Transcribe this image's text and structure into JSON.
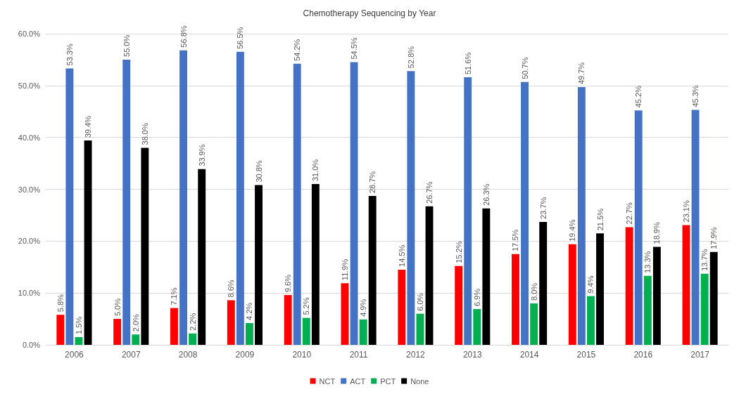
{
  "chart_data": {
    "type": "bar",
    "title": "Chemotherapy Sequencing by Year",
    "categories": [
      "2006",
      "2007",
      "2008",
      "2009",
      "2010",
      "2011",
      "2012",
      "2013",
      "2014",
      "2015",
      "2016",
      "2017"
    ],
    "series": [
      {
        "name": "NCT",
        "color": "#ff0000",
        "values": [
          5.8,
          5.0,
          7.1,
          8.6,
          9.6,
          11.9,
          14.5,
          15.2,
          17.5,
          19.4,
          22.7,
          23.1
        ],
        "value_labels": [
          "5.8%",
          "5.0%",
          "7.1%",
          "8.6%",
          "9.6%",
          "11.9%",
          "14.5%",
          "15.2%",
          "17.5%",
          "19.4%",
          "22.7%",
          "23.1%"
        ]
      },
      {
        "name": "ACT",
        "color": "#4472c4",
        "values": [
          53.3,
          55.0,
          56.8,
          56.5,
          54.2,
          54.5,
          52.8,
          51.6,
          50.7,
          49.7,
          45.2,
          45.3
        ],
        "value_labels": [
          "53.3%",
          "55.0%",
          "56.8%",
          "56.5%",
          "54.2%",
          "54.5%",
          "52.8%",
          "51.6%",
          "50.7%",
          "49.7%",
          "45.2%",
          "45.3%"
        ]
      },
      {
        "name": "PCT",
        "color": "#00b050",
        "values": [
          1.5,
          2.0,
          2.2,
          4.2,
          5.2,
          4.9,
          6.0,
          6.9,
          8.0,
          9.4,
          13.3,
          13.7
        ],
        "value_labels": [
          "1.5%",
          "2.0%",
          "2.2%",
          "4.2%",
          "5.2%",
          "4.9%",
          "6.0%",
          "6.9%",
          "8.0%",
          "9.4%",
          "13.3%",
          "13.7%"
        ]
      },
      {
        "name": "None",
        "color": "#000000",
        "values": [
          39.4,
          38.0,
          33.9,
          30.8,
          31.0,
          28.7,
          26.7,
          26.3,
          23.7,
          21.5,
          18.9,
          17.9
        ],
        "value_labels": [
          "39.4%",
          "38.0%",
          "33.9%",
          "30.8%",
          "31.0%",
          "28.7%",
          "26.7%",
          "26.3%",
          "23.7%",
          "21.5%",
          "18.9%",
          "17.9%"
        ]
      }
    ],
    "ylim": [
      0,
      60
    ],
    "yticks": [
      {
        "value": 0,
        "label": "0.0%"
      },
      {
        "value": 10,
        "label": "10.0%"
      },
      {
        "value": 20,
        "label": "20.0%"
      },
      {
        "value": 30,
        "label": "30.0%"
      },
      {
        "value": 40,
        "label": "40.0%"
      },
      {
        "value": 50,
        "label": "50.0%"
      },
      {
        "value": 60,
        "label": "60.0%"
      }
    ],
    "grid": "y",
    "legend": "bottom"
  }
}
